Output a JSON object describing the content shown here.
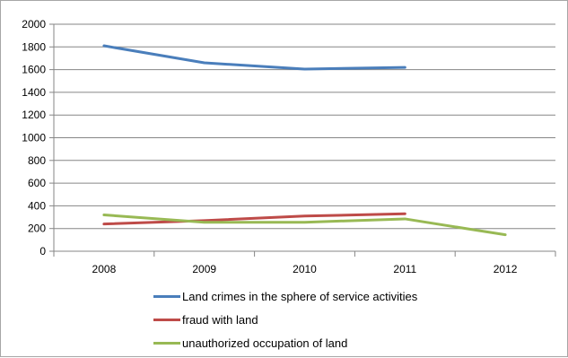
{
  "chart_data": {
    "type": "line",
    "categories": [
      "2008",
      "2009",
      "2010",
      "2011",
      "2012"
    ],
    "ylim": [
      0,
      2000
    ],
    "yticks": [
      0,
      200,
      400,
      600,
      800,
      1000,
      1200,
      1400,
      1600,
      1800,
      2000
    ],
    "grid": "horizontal",
    "legend_position": "bottom",
    "series": [
      {
        "name": "Land crimes in the sphere of service activities",
        "color": "#4a7ebb",
        "values": [
          1810,
          1660,
          1605,
          1620,
          null
        ]
      },
      {
        "name": "fraud with land",
        "color": "#be4b48",
        "values": [
          240,
          270,
          310,
          330,
          null
        ]
      },
      {
        "name": "unauthorized occupation of land",
        "color": "#98b954",
        "values": [
          320,
          255,
          255,
          285,
          145
        ]
      }
    ]
  }
}
